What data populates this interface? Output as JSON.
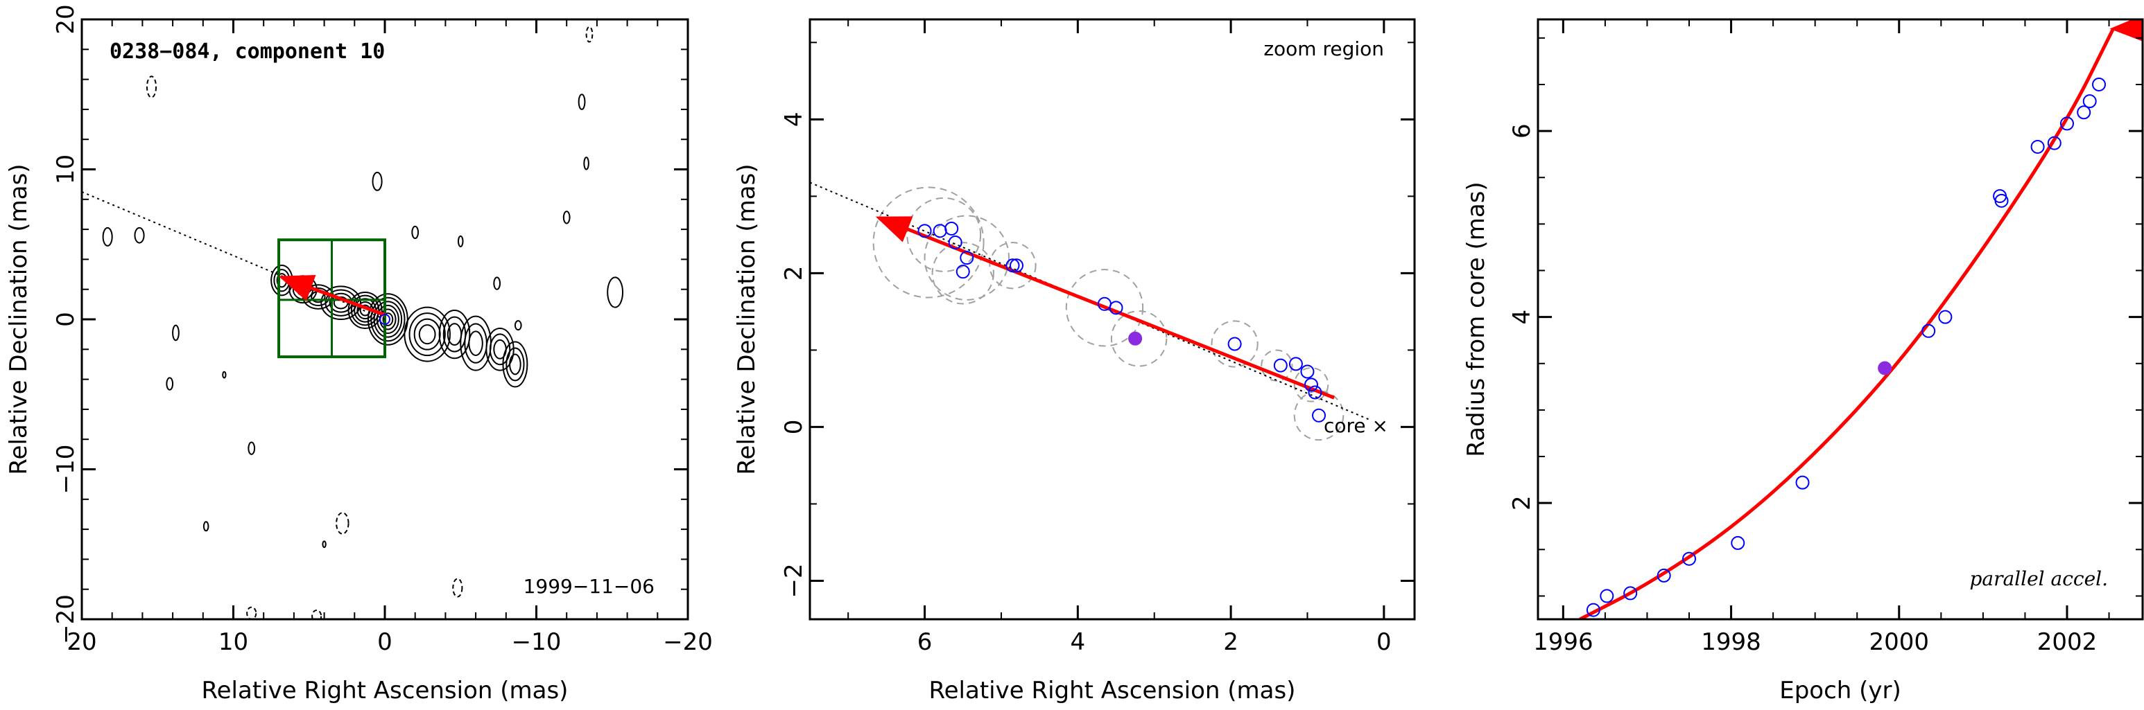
{
  "chart_data": [
    {
      "type": "contour",
      "title": "0238−084, component 10",
      "date_label": "1999−11−06",
      "xlabel": "Relative Right Ascension (mas)",
      "ylabel": "Relative Declination (mas)",
      "xlim": [
        20,
        -20
      ],
      "ylim": [
        -20,
        20
      ],
      "xticks": [
        "20",
        "10",
        "0",
        "−10",
        "−20"
      ],
      "yticks": [
        "−20",
        "−10",
        "0",
        "10",
        "20"
      ],
      "zoom_box": {
        "x": [
          7,
          0
        ],
        "y": [
          -2.5,
          5.3
        ]
      },
      "trajectory_line": {
        "from": [
          20,
          8.5
        ],
        "to": [
          0,
          0
        ]
      },
      "arrow": {
        "from": [
          0,
          0.3
        ],
        "to": [
          6.8,
          2.8
        ]
      },
      "colors": {
        "box": "#006400",
        "arrow": "#ff0000",
        "contour": "#000000"
      }
    },
    {
      "type": "scatter",
      "label": "zoom region",
      "core_label": "core ×",
      "xlabel": "Relative Right Ascension (mas)",
      "ylabel": "Relative Declination (mas)",
      "xlim": [
        7.5,
        -0.4
      ],
      "ylim": [
        -2.5,
        5.3
      ],
      "xticks": [
        "6",
        "4",
        "2",
        "0"
      ],
      "yticks": [
        "−2",
        "0",
        "2",
        "4"
      ],
      "points": [
        {
          "x": 6.0,
          "y": 2.55
        },
        {
          "x": 5.8,
          "y": 2.55
        },
        {
          "x": 5.65,
          "y": 2.58
        },
        {
          "x": 5.6,
          "y": 2.4
        },
        {
          "x": 5.45,
          "y": 2.2
        },
        {
          "x": 5.5,
          "y": 2.02
        },
        {
          "x": 4.85,
          "y": 2.1
        },
        {
          "x": 4.8,
          "y": 2.1
        },
        {
          "x": 3.65,
          "y": 1.6
        },
        {
          "x": 3.5,
          "y": 1.55
        },
        {
          "x": 1.95,
          "y": 1.08
        },
        {
          "x": 1.35,
          "y": 0.8
        },
        {
          "x": 1.15,
          "y": 0.82
        },
        {
          "x": 1.0,
          "y": 0.72
        },
        {
          "x": 0.95,
          "y": 0.55
        },
        {
          "x": 0.9,
          "y": 0.45
        },
        {
          "x": 0.85,
          "y": 0.15
        }
      ],
      "highlight": {
        "x": 3.25,
        "y": 1.15
      },
      "beam_circles": [
        {
          "x": 5.95,
          "y": 2.4,
          "r": 0.72
        },
        {
          "x": 5.75,
          "y": 2.5,
          "r": 0.48
        },
        {
          "x": 5.45,
          "y": 2.2,
          "r": 0.55
        },
        {
          "x": 5.5,
          "y": 2.0,
          "r": 0.4
        },
        {
          "x": 4.85,
          "y": 2.1,
          "r": 0.3
        },
        {
          "x": 3.65,
          "y": 1.55,
          "r": 0.5
        },
        {
          "x": 3.2,
          "y": 1.15,
          "r": 0.36
        },
        {
          "x": 1.95,
          "y": 1.08,
          "r": 0.3
        },
        {
          "x": 1.4,
          "y": 0.8,
          "r": 0.2
        },
        {
          "x": 0.95,
          "y": 0.55,
          "r": 0.22
        },
        {
          "x": 0.85,
          "y": 0.15,
          "r": 0.32
        }
      ],
      "trajectory_line": {
        "from": [
          7.5,
          3.18
        ],
        "to": [
          0.2,
          0.1
        ]
      },
      "arrow": {
        "from": [
          0.65,
          0.38
        ],
        "to": [
          6.6,
          2.72
        ]
      },
      "colors": {
        "points": "#0000ff",
        "highlight": "#8a2be2",
        "arrow": "#ff0000",
        "circles": "#a0a0a0"
      }
    },
    {
      "type": "scatter",
      "label": "parallel accel.",
      "xlabel": "Epoch (yr)",
      "ylabel": "Radius from core (mas)",
      "xlim": [
        1995.7,
        2002.9
      ],
      "ylim": [
        0.75,
        7.2
      ],
      "xticks": [
        "1996",
        "1998",
        "2000",
        "2002"
      ],
      "yticks": [
        "2",
        "4",
        "6"
      ],
      "points": [
        {
          "x": 1996.36,
          "y": 0.85
        },
        {
          "x": 1996.52,
          "y": 1.0
        },
        {
          "x": 1996.8,
          "y": 1.03
        },
        {
          "x": 1997.2,
          "y": 1.22
        },
        {
          "x": 1997.5,
          "y": 1.4
        },
        {
          "x": 1998.08,
          "y": 1.57
        },
        {
          "x": 1998.85,
          "y": 2.22
        },
        {
          "x": 2000.35,
          "y": 3.85
        },
        {
          "x": 2000.55,
          "y": 4.0
        },
        {
          "x": 2001.2,
          "y": 5.3
        },
        {
          "x": 2001.22,
          "y": 5.25
        },
        {
          "x": 2001.65,
          "y": 5.83
        },
        {
          "x": 2001.85,
          "y": 5.87
        },
        {
          "x": 2002.0,
          "y": 6.08
        },
        {
          "x": 2002.2,
          "y": 6.2
        },
        {
          "x": 2002.27,
          "y": 6.32
        },
        {
          "x": 2002.38,
          "y": 6.5
        }
      ],
      "highlight": {
        "x": 1999.83,
        "y": 3.45
      },
      "fit_curve": [
        {
          "x": 1996.2,
          "y": 0.75
        },
        {
          "x": 1997.0,
          "y": 1.12
        },
        {
          "x": 1998.0,
          "y": 1.72
        },
        {
          "x": 1999.0,
          "y": 2.52
        },
        {
          "x": 2000.0,
          "y": 3.5
        },
        {
          "x": 2001.0,
          "y": 4.72
        },
        {
          "x": 2002.0,
          "y": 6.1
        },
        {
          "x": 2002.55,
          "y": 7.1
        }
      ],
      "colors": {
        "points": "#0000ff",
        "highlight": "#8a2be2",
        "curve": "#ff0000"
      }
    }
  ]
}
